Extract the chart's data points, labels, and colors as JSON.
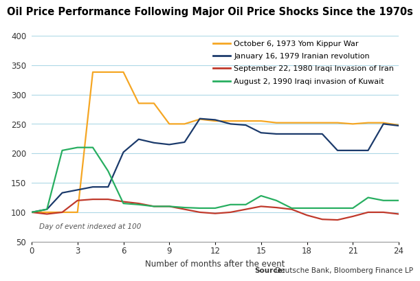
{
  "title": "Oil Price Performance Following Major Oil Price Shocks Since the 1970s",
  "xlabel": "Number of months after the event",
  "annotation": "Day of event indexed at 100",
  "source_bold": "Source:",
  "source_rest": " Deutsche Bank, Bloomberg Finance LP",
  "ylim": [
    50,
    400
  ],
  "yticks": [
    50,
    100,
    150,
    200,
    250,
    300,
    350,
    400
  ],
  "xticks": [
    0,
    3,
    6,
    9,
    12,
    15,
    18,
    21,
    24
  ],
  "series": [
    {
      "label": "October 6, 1973 Yom Kippur War",
      "color": "#F5A623",
      "x": [
        0,
        1,
        2,
        3,
        4,
        5,
        6,
        7,
        8,
        9,
        10,
        11,
        12,
        13,
        14,
        15,
        16,
        17,
        18,
        19,
        20,
        21,
        22,
        23,
        24
      ],
      "y": [
        100,
        100,
        100,
        100,
        338,
        338,
        338,
        285,
        285,
        250,
        250,
        258,
        255,
        255,
        255,
        255,
        252,
        252,
        252,
        252,
        252,
        250,
        252,
        252,
        248
      ]
    },
    {
      "label": "January 16, 1979 Iranian revolution",
      "color": "#1B3A6B",
      "x": [
        0,
        1,
        2,
        3,
        4,
        5,
        6,
        7,
        8,
        9,
        10,
        11,
        12,
        13,
        14,
        15,
        16,
        17,
        18,
        19,
        20,
        21,
        22,
        23,
        24
      ],
      "y": [
        100,
        105,
        133,
        138,
        143,
        143,
        202,
        224,
        218,
        215,
        219,
        259,
        257,
        250,
        248,
        235,
        233,
        233,
        233,
        233,
        205,
        205,
        205,
        250,
        247
      ]
    },
    {
      "label": "September 22, 1980 Iraqi Invasion of Iran",
      "color": "#C0392B",
      "x": [
        0,
        1,
        2,
        3,
        4,
        5,
        6,
        7,
        8,
        9,
        10,
        11,
        12,
        13,
        14,
        15,
        16,
        17,
        18,
        19,
        20,
        21,
        22,
        23,
        24
      ],
      "y": [
        100,
        97,
        100,
        120,
        122,
        122,
        118,
        115,
        110,
        110,
        105,
        100,
        98,
        100,
        105,
        110,
        108,
        105,
        95,
        88,
        87,
        93,
        100,
        100,
        97
      ]
    },
    {
      "label": "August 2, 1990 Iraqi invasion of Kuwait",
      "color": "#27AE60",
      "x": [
        0,
        1,
        2,
        3,
        4,
        5,
        6,
        7,
        8,
        9,
        10,
        11,
        12,
        13,
        14,
        15,
        16,
        17,
        18,
        19,
        20,
        21,
        22,
        23,
        24
      ],
      "y": [
        100,
        105,
        205,
        210,
        210,
        170,
        115,
        113,
        110,
        110,
        108,
        107,
        107,
        113,
        113,
        128,
        120,
        107,
        107,
        107,
        107,
        107,
        125,
        120,
        120
      ]
    }
  ],
  "background_color": "#ffffff",
  "grid_color": "#ADD8E6",
  "title_fontsize": 10.5,
  "label_fontsize": 8.5,
  "tick_fontsize": 8.5,
  "legend_fontsize": 8
}
